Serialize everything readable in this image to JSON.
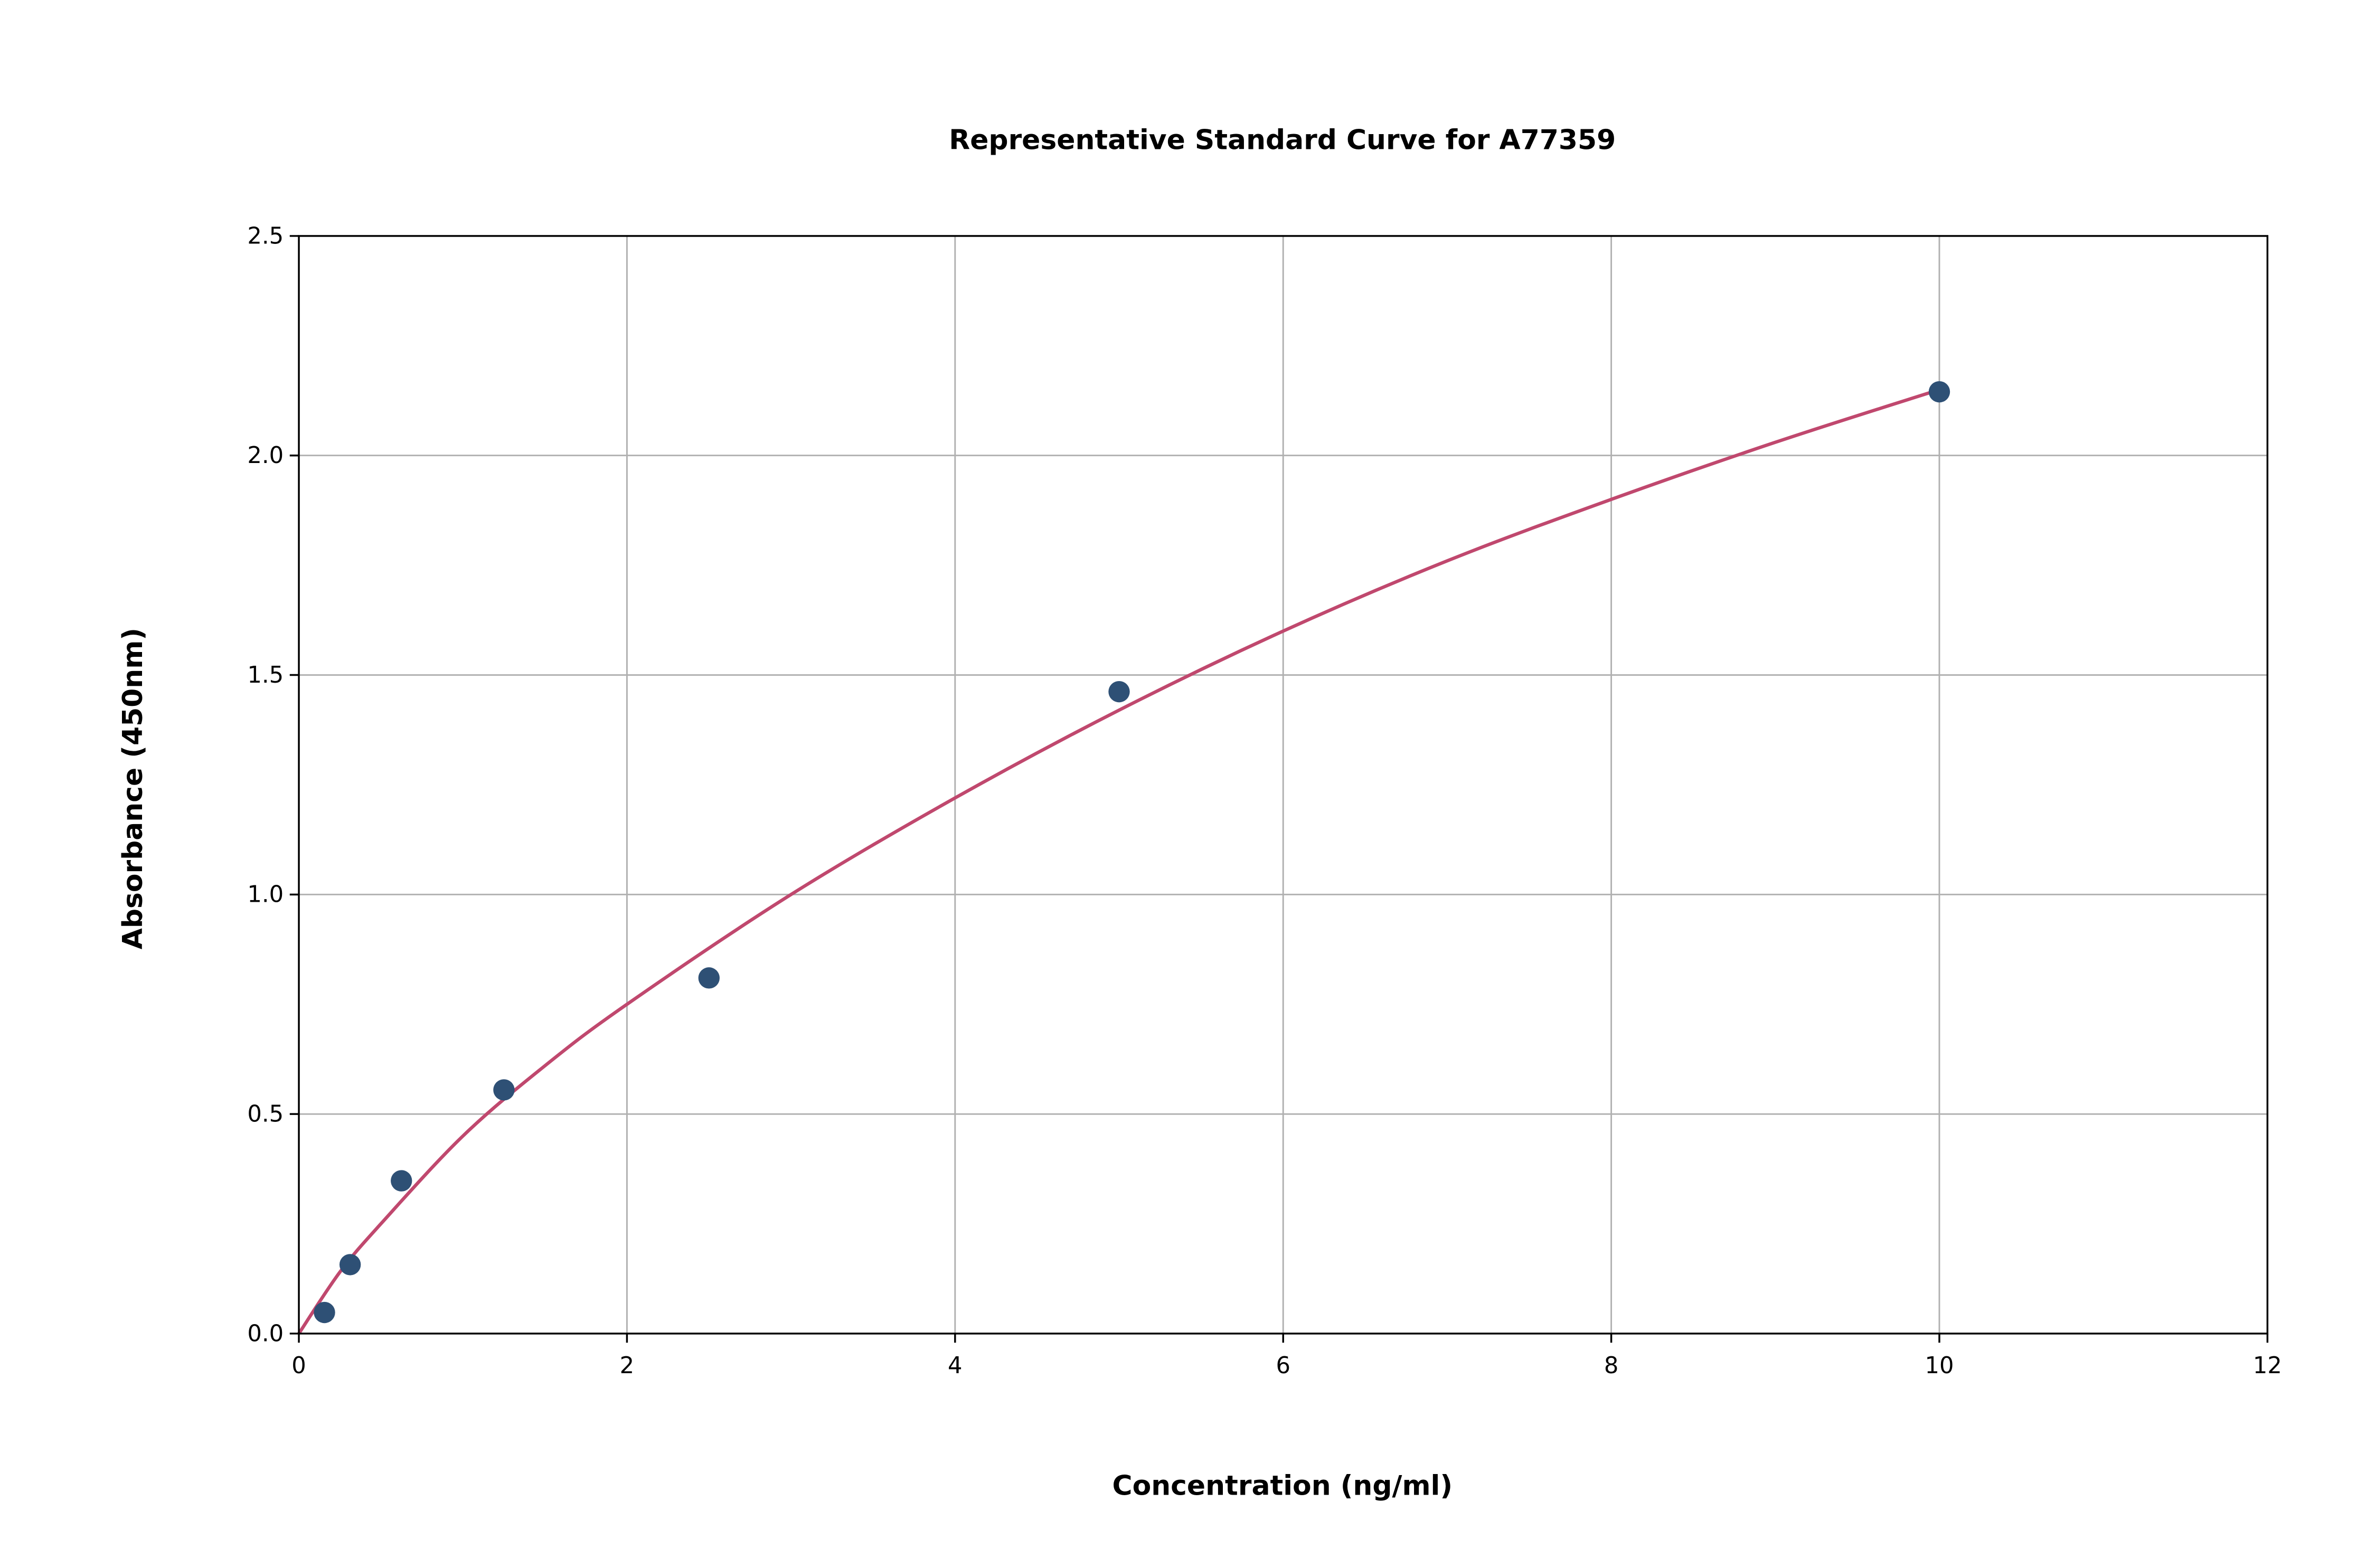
{
  "chart_data": {
    "type": "scatter",
    "title": "Representative Standard Curve for A77359",
    "xlabel": "Concentration (ng/ml)",
    "ylabel": "Absorbance (450nm)",
    "xlim": [
      0,
      12
    ],
    "ylim": [
      0,
      2.5
    ],
    "xticks": [
      "0",
      "2",
      "4",
      "6",
      "8",
      "10",
      "12"
    ],
    "yticks": [
      "0.0",
      "0.5",
      "1.0",
      "1.5",
      "2.0",
      "2.5"
    ],
    "grid": true,
    "points": {
      "x": [
        0.156,
        0.3125,
        0.625,
        1.25,
        2.5,
        5,
        10
      ],
      "y": [
        0.048,
        0.157,
        0.348,
        0.555,
        0.81,
        1.462,
        2.145
      ],
      "color": "#2e5075"
    },
    "fit_curve": {
      "x": [
        0,
        0.25,
        0.5,
        1,
        1.5,
        2,
        3,
        4,
        5,
        6,
        7,
        8,
        9,
        10
      ],
      "y": [
        0,
        0.14,
        0.25,
        0.45,
        0.61,
        0.75,
        1.0,
        1.22,
        1.42,
        1.6,
        1.76,
        1.9,
        2.03,
        2.15
      ],
      "color": "#c0486e"
    }
  }
}
